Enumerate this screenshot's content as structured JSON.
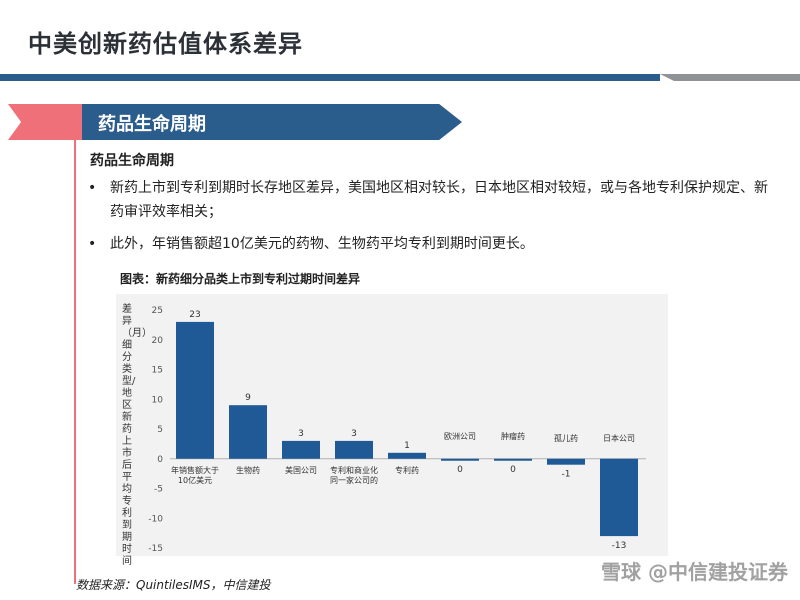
{
  "header": {
    "title": "中美创新药估值体系差异"
  },
  "section": {
    "banner": "药品生命周期",
    "sub_heading": "药品生命周期",
    "bullets": [
      {
        "marker": "•",
        "text": "新药上市到专利到期时长存地区差异，美国地区相对较长，日本地区相对较短，或与各地专利保护规定、新药审评效率相关；"
      },
      {
        "marker": "•",
        "text": "此外，年销售额超10亿美元的药物、生物药平均专利到期时间更长。"
      }
    ]
  },
  "chart_data": {
    "type": "bar",
    "title": "图表：新药细分品类上市到专利过期时间差异",
    "ylabel": "差异（月）细分类型/地区新药上市后平均专利到期时间",
    "categories": [
      "年销售额大于10亿美元",
      "生物药",
      "美国公司",
      "专利和商业化同一家公司的",
      "专利药",
      "欧洲公司",
      "肿瘤药",
      "孤儿药",
      "日本公司"
    ],
    "values": [
      23,
      9,
      3,
      3,
      1,
      0,
      0,
      -1,
      -13
    ],
    "data_labels": [
      "23",
      "9",
      "3",
      "3",
      "1",
      "0",
      "0",
      "-1",
      "-13"
    ],
    "ylim": [
      -15,
      25
    ],
    "yticks": [
      "25",
      "20",
      "15",
      "10",
      "5",
      "0",
      "-5",
      "-10",
      "-15"
    ],
    "bar_color": "#1f5a96",
    "grid": false,
    "legend": "none"
  },
  "footer": {
    "source": "数据来源：QuintilesIMS，中信建投",
    "watermark": "雪球 @中信建投证券"
  }
}
